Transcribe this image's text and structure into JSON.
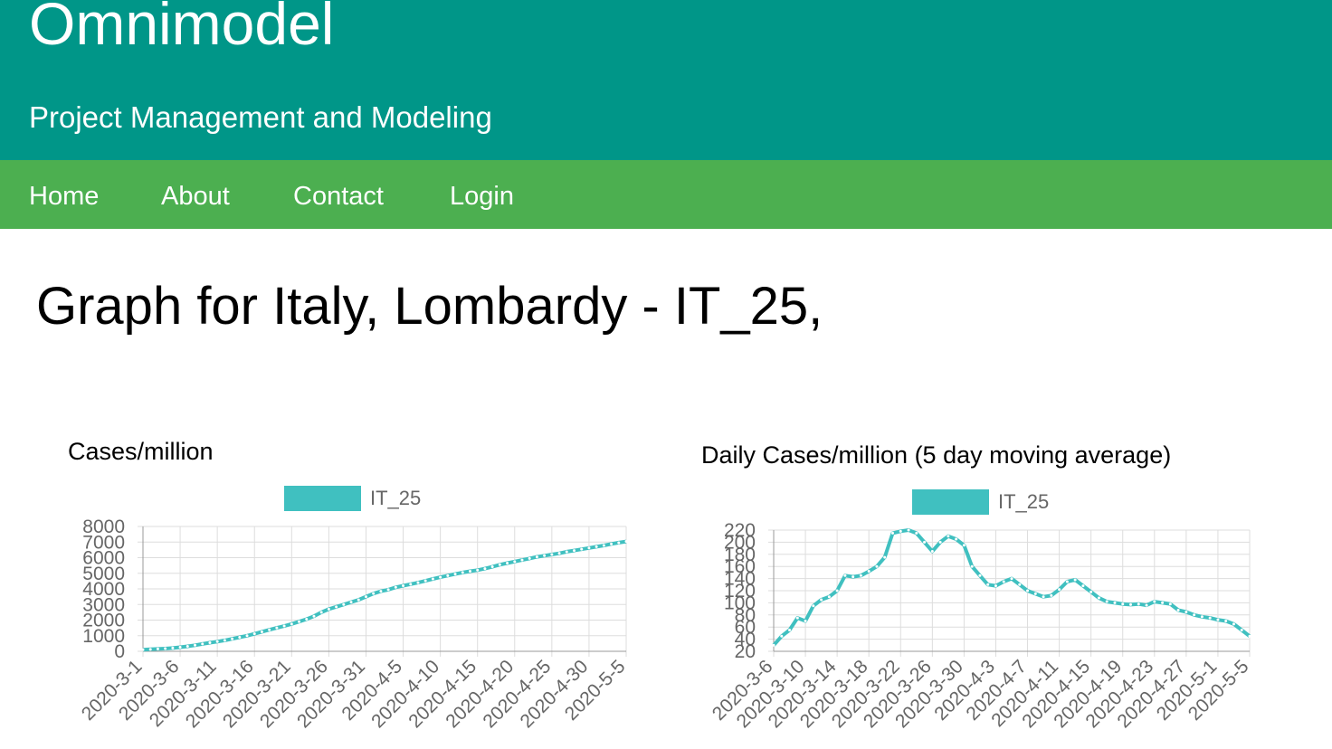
{
  "header": {
    "brand": "Omnimodel",
    "tagline": "Project Management and Modeling"
  },
  "nav": {
    "items": [
      {
        "label": "Home"
      },
      {
        "label": "About"
      },
      {
        "label": "Contact"
      },
      {
        "label": "Login"
      }
    ]
  },
  "main": {
    "title": "Graph for Italy, Lombardy - IT_25,"
  },
  "colors": {
    "header_bg": "#009688",
    "nav_bg": "#4caf50",
    "series": "#40c0c0",
    "grid": "#dddddd",
    "axis_text": "#666666"
  },
  "chart_data": [
    {
      "type": "line",
      "title": "Cases/million",
      "legend_placement": "top",
      "grid": true,
      "ylim": [
        0,
        8000
      ],
      "yticks": [
        0,
        1000,
        2000,
        3000,
        4000,
        5000,
        6000,
        7000,
        8000
      ],
      "x": [
        "2020-3-1",
        "2020-3-2",
        "2020-3-3",
        "2020-3-4",
        "2020-3-5",
        "2020-3-6",
        "2020-3-7",
        "2020-3-8",
        "2020-3-9",
        "2020-3-10",
        "2020-3-11",
        "2020-3-12",
        "2020-3-13",
        "2020-3-14",
        "2020-3-15",
        "2020-3-16",
        "2020-3-17",
        "2020-3-18",
        "2020-3-19",
        "2020-3-20",
        "2020-3-21",
        "2020-3-22",
        "2020-3-23",
        "2020-3-24",
        "2020-3-25",
        "2020-3-26",
        "2020-3-27",
        "2020-3-28",
        "2020-3-29",
        "2020-3-30",
        "2020-3-31",
        "2020-4-1",
        "2020-4-2",
        "2020-4-3",
        "2020-4-4",
        "2020-4-5",
        "2020-4-6",
        "2020-4-7",
        "2020-4-8",
        "2020-4-9",
        "2020-4-10",
        "2020-4-11",
        "2020-4-12",
        "2020-4-13",
        "2020-4-14",
        "2020-4-15",
        "2020-4-16",
        "2020-4-17",
        "2020-4-18",
        "2020-4-19",
        "2020-4-20",
        "2020-4-21",
        "2020-4-22",
        "2020-4-23",
        "2020-4-24",
        "2020-4-25",
        "2020-4-26",
        "2020-4-27",
        "2020-4-28",
        "2020-4-29",
        "2020-4-30",
        "2020-5-1",
        "2020-5-2",
        "2020-5-3",
        "2020-5-4",
        "2020-5-5"
      ],
      "xticklabels": [
        "2020-3-1",
        "2020-3-6",
        "2020-3-11",
        "2020-3-16",
        "2020-3-21",
        "2020-3-26",
        "2020-3-31",
        "2020-4-5",
        "2020-4-10",
        "2020-4-15",
        "2020-4-20",
        "2020-4-25",
        "2020-4-30",
        "2020-5-5"
      ],
      "series": [
        {
          "name": "IT_25",
          "values": [
            100,
            125,
            150,
            175,
            210,
            260,
            320,
            390,
            470,
            550,
            620,
            700,
            800,
            900,
            1000,
            1120,
            1250,
            1380,
            1500,
            1620,
            1750,
            1900,
            2060,
            2250,
            2500,
            2700,
            2850,
            3000,
            3150,
            3300,
            3500,
            3700,
            3850,
            3950,
            4100,
            4200,
            4300,
            4400,
            4520,
            4640,
            4750,
            4850,
            4950,
            5050,
            5130,
            5200,
            5300,
            5420,
            5550,
            5650,
            5750,
            5850,
            5950,
            6050,
            6130,
            6200,
            6280,
            6380,
            6460,
            6540,
            6620,
            6700,
            6780,
            6880,
            6960,
            7040
          ]
        }
      ]
    },
    {
      "type": "line",
      "title": "Daily Cases/million (5 day moving average)",
      "legend_placement": "top",
      "grid": true,
      "ylim": [
        20,
        220
      ],
      "yticks": [
        20,
        40,
        60,
        80,
        100,
        120,
        140,
        160,
        180,
        200,
        220
      ],
      "x": [
        "2020-3-6",
        "2020-3-7",
        "2020-3-8",
        "2020-3-9",
        "2020-3-10",
        "2020-3-11",
        "2020-3-12",
        "2020-3-13",
        "2020-3-14",
        "2020-3-15",
        "2020-3-16",
        "2020-3-17",
        "2020-3-18",
        "2020-3-19",
        "2020-3-20",
        "2020-3-21",
        "2020-3-22",
        "2020-3-23",
        "2020-3-24",
        "2020-3-25",
        "2020-3-26",
        "2020-3-27",
        "2020-3-28",
        "2020-3-29",
        "2020-3-30",
        "2020-3-31",
        "2020-4-1",
        "2020-4-2",
        "2020-4-3",
        "2020-4-4",
        "2020-4-5",
        "2020-4-6",
        "2020-4-7",
        "2020-4-8",
        "2020-4-9",
        "2020-4-10",
        "2020-4-11",
        "2020-4-12",
        "2020-4-13",
        "2020-4-14",
        "2020-4-15",
        "2020-4-16",
        "2020-4-17",
        "2020-4-18",
        "2020-4-19",
        "2020-4-20",
        "2020-4-21",
        "2020-4-22",
        "2020-4-23",
        "2020-4-24",
        "2020-4-25",
        "2020-4-26",
        "2020-4-27",
        "2020-4-28",
        "2020-4-29",
        "2020-4-30",
        "2020-5-1",
        "2020-5-2",
        "2020-5-3",
        "2020-5-4",
        "2020-5-5"
      ],
      "xticklabels": [
        "2020-3-6",
        "2020-3-10",
        "2020-3-14",
        "2020-3-18",
        "2020-3-22",
        "2020-3-26",
        "2020-3-30",
        "2020-4-3",
        "2020-4-7",
        "2020-4-11",
        "2020-4-15",
        "2020-4-19",
        "2020-4-23",
        "2020-4-27",
        "2020-5-1",
        "2020-5-5"
      ],
      "series": [
        {
          "name": "IT_25",
          "values": [
            30,
            45,
            55,
            75,
            70,
            95,
            105,
            110,
            120,
            145,
            143,
            145,
            152,
            160,
            175,
            215,
            218,
            220,
            215,
            200,
            185,
            200,
            210,
            205,
            195,
            160,
            145,
            130,
            128,
            135,
            140,
            130,
            120,
            115,
            110,
            112,
            122,
            135,
            138,
            128,
            118,
            108,
            102,
            100,
            98,
            97,
            98,
            96,
            102,
            100,
            98,
            88,
            85,
            80,
            77,
            75,
            72,
            70,
            65,
            55,
            45
          ]
        }
      ]
    }
  ]
}
